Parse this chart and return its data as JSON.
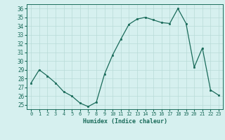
{
  "x": [
    0,
    1,
    2,
    3,
    4,
    5,
    6,
    7,
    8,
    9,
    10,
    11,
    12,
    13,
    14,
    15,
    16,
    17,
    18,
    19,
    20,
    21,
    22,
    23
  ],
  "y": [
    27.5,
    29.0,
    28.3,
    27.5,
    26.5,
    26.0,
    25.2,
    24.8,
    25.3,
    28.5,
    30.7,
    32.5,
    34.2,
    34.8,
    35.0,
    34.7,
    34.4,
    34.3,
    36.0,
    34.3,
    29.3,
    31.5,
    26.7,
    26.1
  ],
  "xlabel": "Humidex (Indice chaleur)",
  "ylim": [
    24.5,
    36.5
  ],
  "xlim": [
    -0.5,
    23.5
  ],
  "yticks": [
    25,
    26,
    27,
    28,
    29,
    30,
    31,
    32,
    33,
    34,
    35,
    36
  ],
  "xticks": [
    0,
    1,
    2,
    3,
    4,
    5,
    6,
    7,
    8,
    9,
    10,
    11,
    12,
    13,
    14,
    15,
    16,
    17,
    18,
    19,
    20,
    21,
    22,
    23
  ],
  "xtick_labels": [
    "0",
    "1",
    "2",
    "3",
    "4",
    "5",
    "6",
    "7",
    "8",
    "9",
    "10",
    "11",
    "12",
    "13",
    "14",
    "15",
    "16",
    "17",
    "18",
    "19",
    "20",
    "21",
    "22",
    "23"
  ],
  "line_color": "#1a6b5a",
  "marker_color": "#1a6b5a",
  "bg_color": "#d6f0ef",
  "grid_color": "#b8dbd8",
  "spine_color": "#1a6b5a",
  "xlabel_color": "#1a6b5a",
  "tick_color": "#1a6b5a"
}
